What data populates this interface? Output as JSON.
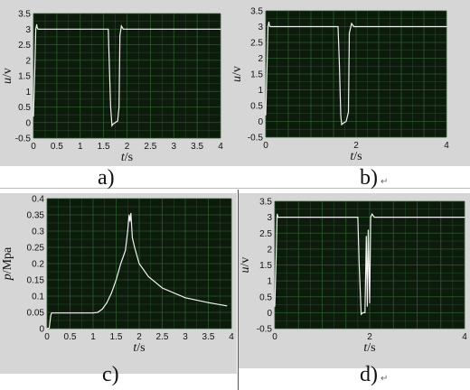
{
  "panels": {
    "a": {
      "caption": "a)"
    },
    "b": {
      "caption": "b)",
      "mark": "↵"
    },
    "c": {
      "caption": "c)"
    },
    "d": {
      "caption": "d)",
      "mark": "↵"
    }
  },
  "colors": {
    "plot_bg": "#0d1b0d",
    "grid": "#2d5a2d",
    "trace": "#f2f2f2",
    "frame": "#d6d6d6"
  },
  "chart_data": [
    {
      "id": "a",
      "type": "line",
      "xlabel": "t/s",
      "ylabel": "u/v",
      "xlim": [
        0,
        4
      ],
      "ylim": [
        -0.5,
        3.5
      ],
      "xticks": [
        "0",
        "0.5",
        "1",
        "1.5",
        "2",
        "2.5",
        "3",
        "3.5",
        "4"
      ],
      "yticks": [
        "-0.5",
        "0",
        "0.5",
        "1",
        "1.5",
        "2",
        "2.5",
        "3",
        "3.5"
      ],
      "grid": true,
      "x": [
        0.0,
        0.03,
        0.05,
        0.07,
        0.08,
        0.1,
        0.15,
        1.6,
        1.62,
        1.65,
        1.68,
        1.7,
        1.75,
        1.8,
        1.83,
        1.85,
        1.88,
        1.92,
        2.0,
        4.0
      ],
      "y": [
        0.2,
        1.8,
        3.0,
        3.15,
        3.05,
        3.0,
        3.0,
        3.0,
        2.0,
        0.5,
        -0.1,
        -0.05,
        0.0,
        0.05,
        0.5,
        2.8,
        3.1,
        3.0,
        3.0,
        3.0
      ]
    },
    {
      "id": "b",
      "type": "line",
      "xlabel": "t/s",
      "ylabel": "u/v",
      "xlim": [
        0,
        4
      ],
      "ylim": [
        -0.5,
        3.5
      ],
      "xticks": [
        "0",
        "2",
        "4"
      ],
      "yticks": [
        "-0.5",
        "0",
        "0.5",
        "1",
        "1.5",
        "2",
        "2.5",
        "3",
        "3.5"
      ],
      "grid": true,
      "x": [
        0.0,
        0.03,
        0.05,
        0.07,
        0.08,
        0.1,
        0.15,
        1.6,
        1.63,
        1.66,
        1.68,
        1.72,
        1.78,
        1.83,
        1.85,
        1.9,
        1.95,
        2.0,
        4.0
      ],
      "y": [
        0.2,
        1.8,
        3.0,
        3.15,
        3.05,
        3.0,
        3.0,
        3.0,
        1.8,
        0.2,
        -0.1,
        -0.05,
        0.0,
        0.3,
        2.8,
        3.1,
        3.0,
        3.0,
        3.0
      ]
    },
    {
      "id": "c",
      "type": "line",
      "xlabel": "t/s",
      "ylabel": "p/Mpa",
      "xlim": [
        0,
        4
      ],
      "ylim": [
        0,
        0.4
      ],
      "xticks": [
        "0",
        "0.5",
        "1",
        "1.5",
        "2",
        "2.5",
        "3",
        "3.5",
        "4"
      ],
      "yticks": [
        "0",
        "0.05",
        "0.1",
        "0.15",
        "0.2",
        "0.25",
        "0.3",
        "0.35",
        "0.4"
      ],
      "grid": true,
      "x": [
        0.0,
        0.05,
        0.08,
        0.1,
        1.0,
        1.1,
        1.2,
        1.3,
        1.4,
        1.5,
        1.6,
        1.7,
        1.75,
        1.78,
        1.8,
        1.82,
        1.85,
        1.9,
        2.0,
        2.2,
        2.5,
        3.0,
        3.5,
        3.9
      ],
      "y": [
        0.0,
        0.002,
        0.04,
        0.048,
        0.048,
        0.05,
        0.06,
        0.08,
        0.11,
        0.15,
        0.2,
        0.24,
        0.3,
        0.35,
        0.33,
        0.355,
        0.28,
        0.25,
        0.2,
        0.16,
        0.125,
        0.095,
        0.08,
        0.07
      ]
    },
    {
      "id": "d",
      "type": "line",
      "xlabel": "t/s",
      "ylabel": "u/v",
      "xlim": [
        0,
        4
      ],
      "ylim": [
        -0.5,
        3.5
      ],
      "xticks": [
        "0",
        "2",
        "4"
      ],
      "yticks": [
        "-0.5",
        "0",
        "0.5",
        "1",
        "1.5",
        "2",
        "2.5",
        "3",
        "3.5"
      ],
      "grid": true,
      "x": [
        0.0,
        0.03,
        0.05,
        0.07,
        0.1,
        1.75,
        1.78,
        1.82,
        1.86,
        1.9,
        1.93,
        1.95,
        1.97,
        2.0,
        2.02,
        2.05,
        2.1,
        2.15,
        4.0
      ],
      "y": [
        0.2,
        1.8,
        3.1,
        3.0,
        3.0,
        3.0,
        1.5,
        -0.05,
        0.0,
        0.0,
        2.4,
        0.2,
        2.6,
        0.3,
        3.0,
        3.1,
        3.0,
        3.0,
        3.0
      ]
    }
  ]
}
